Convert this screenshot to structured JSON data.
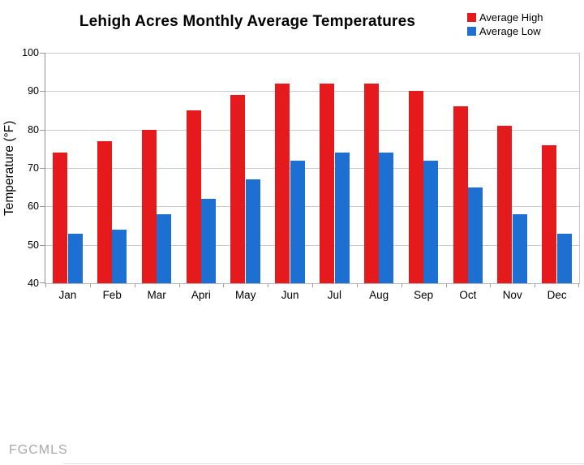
{
  "page": {
    "watermark": "FGCMLS",
    "background": "#ffffff"
  },
  "chart_data": {
    "type": "bar",
    "title": "Lehigh Acres Monthly Average Temperatures",
    "xlabel": "",
    "ylabel": "Temperature (°F)",
    "categories": [
      "Jan",
      "Feb",
      "Mar",
      "Apri",
      "May",
      "Jun",
      "Jul",
      "Aug",
      "Sep",
      "Oct",
      "Nov",
      "Dec"
    ],
    "series": [
      {
        "name": "Average High",
        "color": "#e41a1c",
        "values": [
          74,
          77,
          80,
          85,
          89,
          92,
          92,
          92,
          90,
          86,
          81,
          76
        ]
      },
      {
        "name": "Average Low",
        "color": "#1e6fd2",
        "values": [
          53,
          54,
          58,
          62,
          67,
          72,
          74,
          74,
          72,
          65,
          58,
          53
        ]
      }
    ],
    "ylim": [
      40,
      100
    ],
    "ytick_step": 10,
    "grid": true,
    "legend_position": "top-right",
    "gridline_color": "#c9c9c9",
    "axis_color": "#9a9a9a",
    "tick_label_color": "#000000"
  }
}
